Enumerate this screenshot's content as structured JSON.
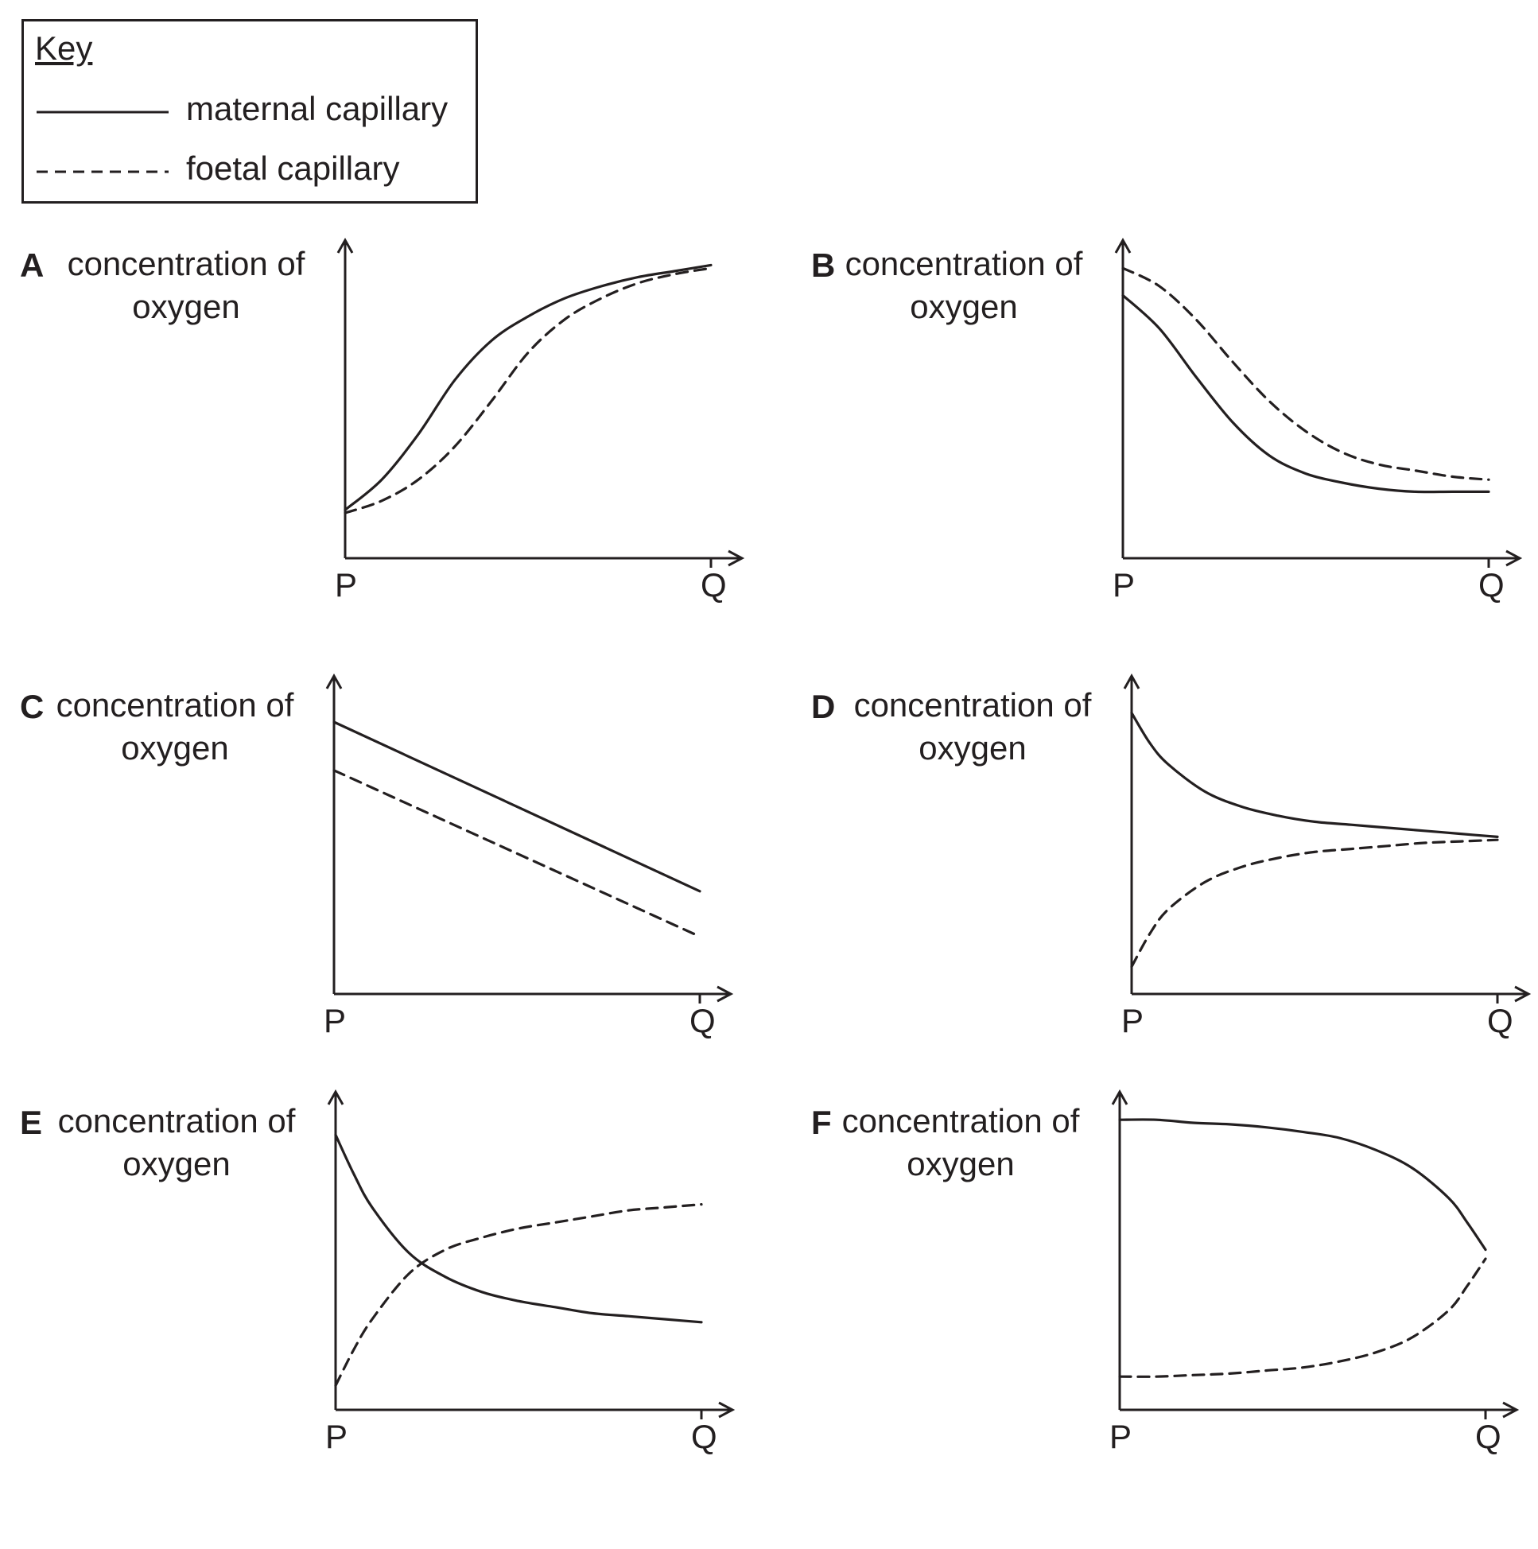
{
  "key": {
    "title": "Key",
    "items": [
      {
        "label": "maternal capillary",
        "style": "solid"
      },
      {
        "label": "foetal capillary",
        "style": "dashed"
      }
    ]
  },
  "colors": {
    "ink": "#231f20"
  },
  "chart_data": [
    {
      "id": "A",
      "type": "line",
      "title": "A",
      "ylabel": "concentration of oxygen",
      "x_ticks": [
        "P",
        "Q"
      ],
      "xlim": [
        0,
        1
      ],
      "ylim": [
        0,
        1
      ],
      "series": [
        {
          "name": "maternal capillary",
          "style": "solid",
          "x": [
            0,
            0.1,
            0.2,
            0.3,
            0.4,
            0.5,
            0.6,
            0.7,
            0.8,
            0.9,
            1.0
          ],
          "y": [
            0.16,
            0.26,
            0.41,
            0.59,
            0.72,
            0.8,
            0.86,
            0.9,
            0.93,
            0.95,
            0.97
          ]
        },
        {
          "name": "foetal capillary",
          "style": "dashed",
          "x": [
            0,
            0.1,
            0.2,
            0.3,
            0.4,
            0.5,
            0.6,
            0.7,
            0.8,
            0.9,
            1.0
          ],
          "y": [
            0.15,
            0.19,
            0.26,
            0.37,
            0.52,
            0.68,
            0.79,
            0.86,
            0.91,
            0.94,
            0.96
          ]
        }
      ]
    },
    {
      "id": "B",
      "type": "line",
      "title": "B",
      "ylabel": "concentration of oxygen",
      "x_ticks": [
        "P",
        "Q"
      ],
      "xlim": [
        0,
        1
      ],
      "ylim": [
        0,
        1
      ],
      "series": [
        {
          "name": "maternal capillary",
          "style": "solid",
          "x": [
            0,
            0.1,
            0.2,
            0.3,
            0.4,
            0.5,
            0.6,
            0.7,
            0.8,
            0.9,
            1.0
          ],
          "y": [
            0.87,
            0.76,
            0.6,
            0.45,
            0.34,
            0.28,
            0.25,
            0.23,
            0.22,
            0.22,
            0.22
          ]
        },
        {
          "name": "foetal capillary",
          "style": "dashed",
          "x": [
            0,
            0.1,
            0.2,
            0.3,
            0.4,
            0.5,
            0.6,
            0.7,
            0.8,
            0.9,
            1.0
          ],
          "y": [
            0.96,
            0.9,
            0.79,
            0.65,
            0.52,
            0.42,
            0.35,
            0.31,
            0.29,
            0.27,
            0.26
          ]
        }
      ]
    },
    {
      "id": "C",
      "type": "line",
      "title": "C",
      "ylabel": "concentration of oxygen",
      "x_ticks": [
        "P",
        "Q"
      ],
      "xlim": [
        0,
        1
      ],
      "ylim": [
        0,
        1
      ],
      "series": [
        {
          "name": "maternal capillary",
          "style": "solid",
          "x": [
            0,
            1.0
          ],
          "y": [
            0.9,
            0.34
          ]
        },
        {
          "name": "foetal capillary",
          "style": "dashed",
          "x": [
            0,
            1.0
          ],
          "y": [
            0.74,
            0.19
          ]
        }
      ]
    },
    {
      "id": "D",
      "type": "line",
      "title": "D",
      "ylabel": "concentration of oxygen",
      "x_ticks": [
        "P",
        "Q"
      ],
      "xlim": [
        0,
        1
      ],
      "ylim": [
        0,
        1
      ],
      "series": [
        {
          "name": "maternal capillary",
          "style": "solid",
          "x": [
            0,
            0.05,
            0.1,
            0.2,
            0.3,
            0.4,
            0.5,
            0.6,
            0.7,
            0.8,
            0.9,
            1.0
          ],
          "y": [
            0.93,
            0.83,
            0.76,
            0.67,
            0.62,
            0.59,
            0.57,
            0.56,
            0.55,
            0.54,
            0.53,
            0.52
          ]
        },
        {
          "name": "foetal capillary",
          "style": "dashed",
          "x": [
            0,
            0.05,
            0.1,
            0.2,
            0.3,
            0.4,
            0.5,
            0.6,
            0.7,
            0.8,
            0.9,
            1.0
          ],
          "y": [
            0.09,
            0.2,
            0.28,
            0.37,
            0.42,
            0.45,
            0.47,
            0.48,
            0.49,
            0.5,
            0.505,
            0.51
          ]
        }
      ]
    },
    {
      "id": "E",
      "type": "line",
      "title": "E",
      "ylabel": "concentration of oxygen",
      "x_ticks": [
        "P",
        "Q"
      ],
      "xlim": [
        0,
        1
      ],
      "ylim": [
        0,
        1
      ],
      "series": [
        {
          "name": "maternal capillary",
          "style": "solid",
          "x": [
            0,
            0.05,
            0.1,
            0.2,
            0.3,
            0.4,
            0.5,
            0.6,
            0.7,
            0.8,
            0.9,
            1.0
          ],
          "y": [
            0.91,
            0.78,
            0.67,
            0.52,
            0.44,
            0.39,
            0.36,
            0.34,
            0.32,
            0.31,
            0.3,
            0.29
          ]
        },
        {
          "name": "foetal capillary",
          "style": "dashed",
          "x": [
            0,
            0.05,
            0.1,
            0.2,
            0.3,
            0.4,
            0.5,
            0.6,
            0.7,
            0.8,
            0.9,
            1.0
          ],
          "y": [
            0.08,
            0.2,
            0.3,
            0.45,
            0.53,
            0.57,
            0.6,
            0.62,
            0.64,
            0.66,
            0.67,
            0.68
          ]
        }
      ]
    },
    {
      "id": "F",
      "type": "line",
      "title": "F",
      "ylabel": "concentration of oxygen",
      "x_ticks": [
        "P",
        "Q"
      ],
      "xlim": [
        0,
        1
      ],
      "ylim": [
        0,
        1
      ],
      "series": [
        {
          "name": "maternal capillary",
          "style": "solid",
          "x": [
            0,
            0.1,
            0.2,
            0.3,
            0.4,
            0.5,
            0.6,
            0.7,
            0.8,
            0.9,
            0.95,
            1.0
          ],
          "y": [
            0.96,
            0.96,
            0.95,
            0.945,
            0.935,
            0.92,
            0.9,
            0.86,
            0.8,
            0.7,
            0.62,
            0.53
          ]
        },
        {
          "name": "foetal capillary",
          "style": "dashed",
          "x": [
            0,
            0.1,
            0.2,
            0.3,
            0.4,
            0.5,
            0.6,
            0.7,
            0.8,
            0.9,
            0.95,
            1.0
          ],
          "y": [
            0.11,
            0.11,
            0.115,
            0.12,
            0.13,
            0.14,
            0.16,
            0.19,
            0.24,
            0.33,
            0.41,
            0.5
          ]
        }
      ]
    }
  ]
}
